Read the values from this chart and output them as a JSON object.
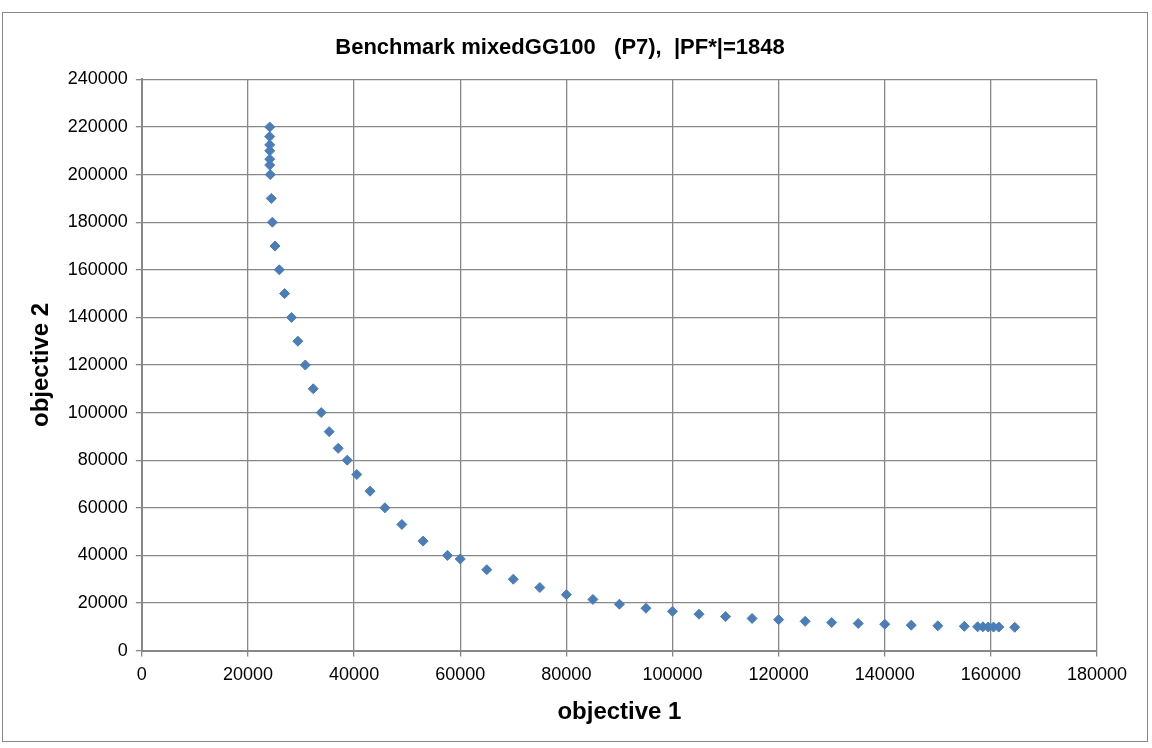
{
  "chart_data": {
    "type": "scatter",
    "title": "Benchmark mixedGG100   (P7),  |PF*|=1848",
    "xlabel": "objective 1",
    "ylabel": "objective 2",
    "color": "#4a7ebb",
    "marker": "diamond",
    "grid": true,
    "x": [
      24100,
      24100,
      24100,
      24100,
      24100,
      24100,
      24200,
      24400,
      24600,
      25100,
      25900,
      26900,
      28200,
      29400,
      30800,
      32300,
      33800,
      35300,
      37000,
      38700,
      40500,
      43000,
      45800,
      49000,
      53000,
      57600,
      60000,
      65000,
      70000,
      75000,
      80000,
      85000,
      90000,
      95000,
      100000,
      105000,
      110000,
      115000,
      120000,
      125000,
      130000,
      135000,
      140000,
      145000,
      150000,
      155000,
      157500,
      158500,
      159500,
      160500,
      161500,
      164500
    ],
    "values": [
      220000,
      216000,
      212500,
      210000,
      206500,
      204000,
      200000,
      190000,
      180000,
      170000,
      160000,
      150000,
      140000,
      130000,
      120000,
      110000,
      100000,
      92000,
      85000,
      80000,
      74000,
      67000,
      60000,
      53000,
      46000,
      40000,
      38500,
      34000,
      30000,
      26500,
      23500,
      21500,
      19500,
      17800,
      16500,
      15300,
      14300,
      13500,
      13000,
      12300,
      11800,
      11400,
      11100,
      10700,
      10400,
      10200,
      10000,
      10000,
      9900,
      9900,
      9900,
      9800
    ],
    "xlim": [
      0,
      180000
    ],
    "xticks": [
      0,
      20000,
      40000,
      60000,
      80000,
      100000,
      120000,
      140000,
      160000,
      180000
    ],
    "ylim": [
      0,
      240000
    ],
    "yticks": [
      0,
      20000,
      40000,
      60000,
      80000,
      100000,
      120000,
      140000,
      160000,
      180000,
      200000,
      220000,
      240000
    ]
  }
}
